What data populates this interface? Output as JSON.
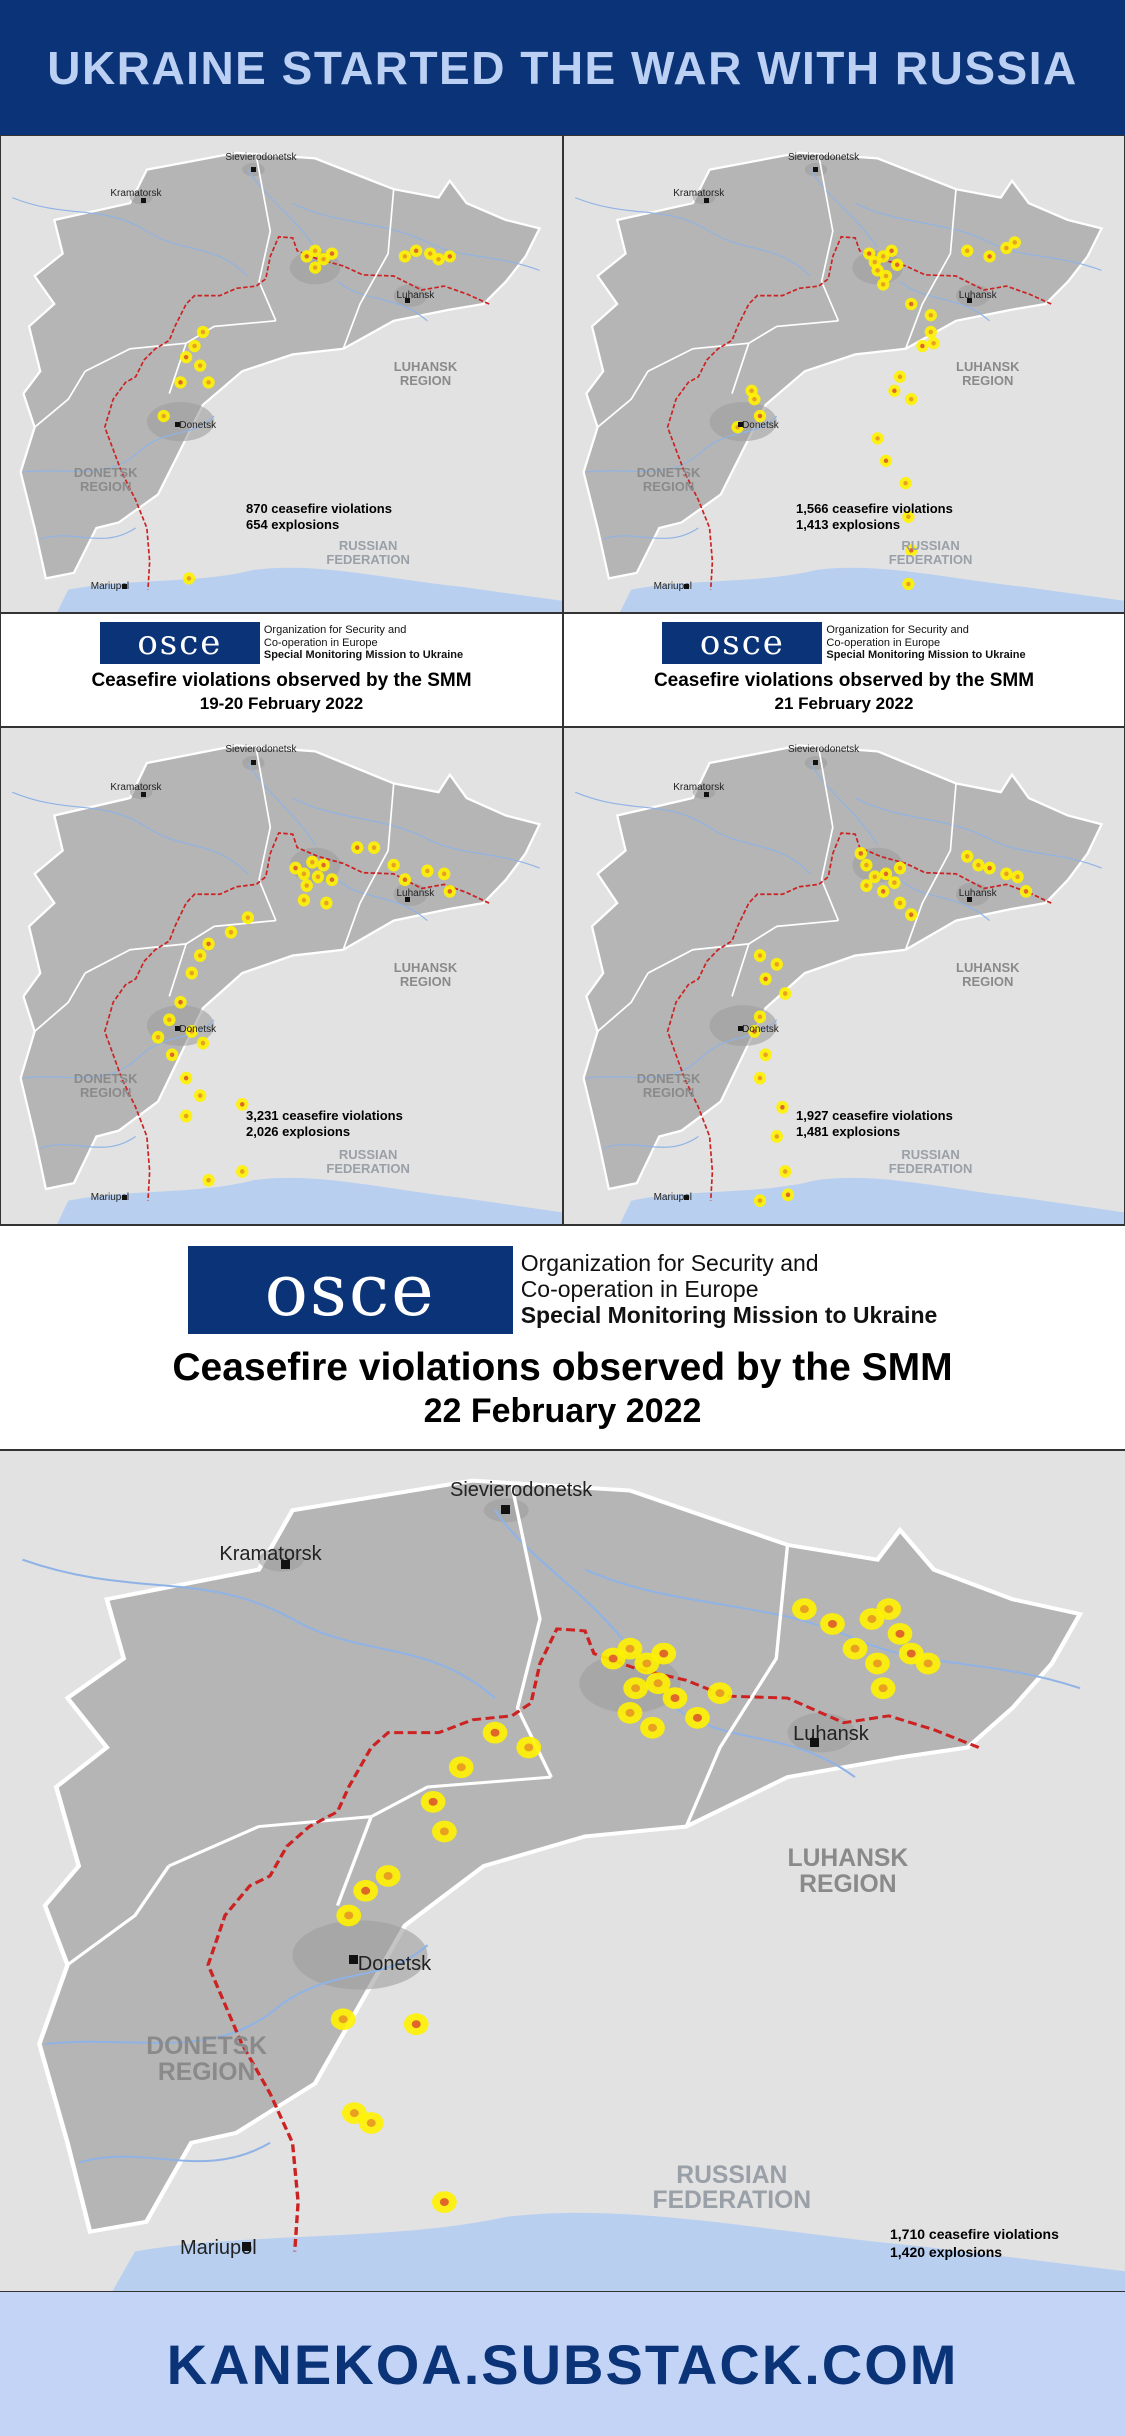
{
  "header": {
    "title": "UKRAINE STARTED THE WAR WITH RUSSIA"
  },
  "footer": {
    "site": "KANEKOA.SUBSTACK.COM"
  },
  "osce": {
    "logo_text": "osce",
    "org_line1": "Organization for Security and",
    "org_line2": "Co-operation in Europe",
    "mission": "Special Monitoring Mission to Ukraine",
    "title": "Ceasefire violations observed by the SMM"
  },
  "labels": {
    "sievierodonetsk": "Sievierodonetsk",
    "kramatorsk": "Kramatorsk",
    "luhansk": "Luhansk",
    "donetsk": "Donetsk",
    "mariupol": "Mariupol",
    "luhansk_region_1": "LUHANSK",
    "luhansk_region_2": "REGION",
    "donetsk_region_1": "DONETSK",
    "donetsk_region_2": "REGION",
    "russia_1": "RUSSIAN",
    "russia_2": "FEDERATION"
  },
  "colors": {
    "header_bg": "#0a3378",
    "header_text": "#bcd0f4",
    "footer_bg": "#c3d4f7",
    "hotspot": "#fff200",
    "line": "#cc2222"
  },
  "maps": [
    {
      "date": "19-20 February 2022",
      "violations": "870 ceasefire violations",
      "explosions": "654 explosions"
    },
    {
      "date": "21 February 2022",
      "violations": "1,566 ceasefire violations",
      "explosions": "1,413 explosions"
    },
    {
      "violations": "3,231 ceasefire violations",
      "explosions": "2,026 explosions"
    },
    {
      "violations": "1,927 ceasefire violations",
      "explosions": "1,481 explosions"
    },
    {
      "date": "22 February 2022",
      "violations": "1,710 ceasefire violations",
      "explosions": "1,420 explosions"
    }
  ]
}
